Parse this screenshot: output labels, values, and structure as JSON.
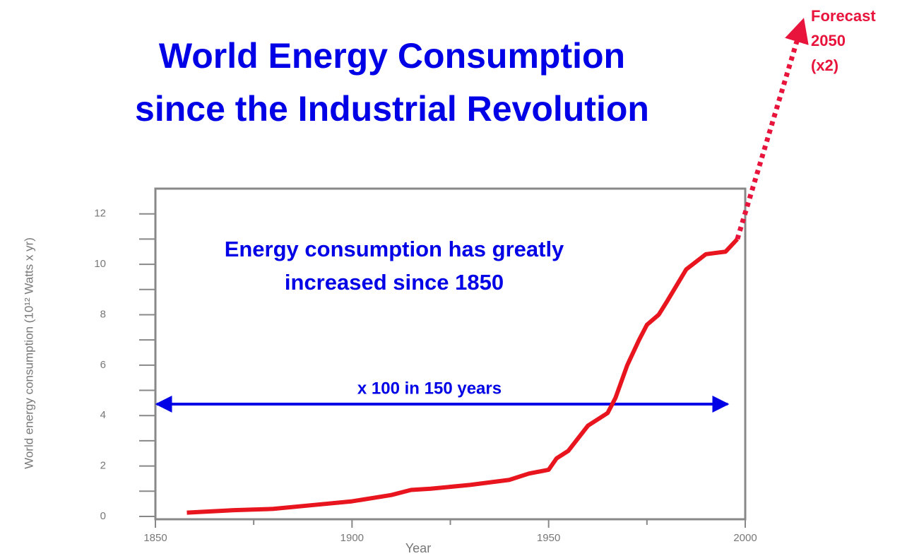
{
  "chart_data": {
    "type": "line",
    "title": [
      "World Energy Consumption",
      "since the Industrial Revolution"
    ],
    "x_label": "Year",
    "y_label": "World energy consumption (10¹² Watts x yr)",
    "annotations": {
      "main": [
        "Energy consumption has greatly",
        "increased since 1850"
      ],
      "span": "x 100 in 150 years",
      "forecast": [
        "Forecast",
        "2050",
        "(x2)"
      ]
    },
    "x": [
      1858,
      1870,
      1880,
      1890,
      1900,
      1910,
      1915,
      1920,
      1930,
      1940,
      1945,
      1950,
      1952,
      1955,
      1960,
      1965,
      1967,
      1970,
      1973,
      1975,
      1978,
      1980,
      1985,
      1990,
      1995,
      1998
    ],
    "series": [
      {
        "name": "World energy consumption",
        "color": "#e8141e",
        "values": [
          0.15,
          0.25,
          0.3,
          0.45,
          0.6,
          0.85,
          1.05,
          1.1,
          1.25,
          1.45,
          1.7,
          1.85,
          2.3,
          2.6,
          3.6,
          4.1,
          4.7,
          6.0,
          7.0,
          7.6,
          8.0,
          8.5,
          9.8,
          10.4,
          10.5,
          11.0
        ]
      }
    ],
    "xlim": [
      1850,
      2000
    ],
    "xticks": [
      1850,
      1900,
      1950,
      2000
    ],
    "ylim": [
      0,
      13
    ],
    "yticks": [
      0,
      2,
      4,
      6,
      8,
      10,
      12
    ]
  }
}
